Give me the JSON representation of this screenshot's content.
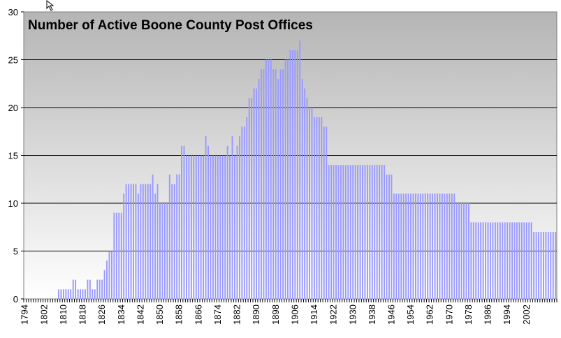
{
  "chart_data": {
    "type": "bar",
    "title": "Number of Active Boone County Post Offices",
    "xlabel": "",
    "ylabel": "",
    "ylim": [
      0,
      30
    ],
    "yticks": [
      0,
      5,
      10,
      15,
      20,
      25,
      30
    ],
    "xtick_labels": [
      "1794",
      "1802",
      "1810",
      "1818",
      "1826",
      "1834",
      "1842",
      "1850",
      "1858",
      "1866",
      "1874",
      "1882",
      "1890",
      "1898",
      "1906",
      "1914",
      "1922",
      "1930",
      "1938",
      "1946",
      "1954",
      "1962",
      "1970",
      "1978",
      "1986",
      "1994",
      "2002"
    ],
    "grid": true,
    "legend": "none",
    "bar_color": "#9999ff",
    "x_start": 1794,
    "x_end": 2005,
    "values": [
      0,
      0,
      0,
      0,
      0,
      0,
      0,
      0,
      0,
      0,
      0,
      0,
      0,
      0,
      1,
      1,
      1,
      1,
      1,
      1,
      2,
      2,
      1,
      1,
      1,
      1,
      2,
      2,
      1,
      1,
      2,
      2,
      2,
      3,
      4,
      5,
      5,
      9,
      9,
      9,
      9,
      11,
      12,
      12,
      12,
      12,
      12,
      11,
      12,
      12,
      12,
      12,
      12,
      13,
      11,
      12,
      10,
      10,
      10,
      10,
      13,
      12,
      12,
      13,
      13,
      16,
      16,
      15,
      15,
      15,
      15,
      15,
      15,
      15,
      15,
      17,
      16,
      15,
      15,
      15,
      15,
      15,
      15,
      15,
      16,
      15,
      17,
      15,
      16,
      17,
      18,
      18,
      19,
      21,
      21,
      22,
      22,
      23,
      24,
      24,
      25,
      25,
      25,
      24,
      24,
      23,
      24,
      24,
      25,
      25,
      26,
      26,
      26,
      26,
      27,
      23,
      22,
      21,
      20,
      20,
      19,
      19,
      19,
      19,
      18,
      18,
      14,
      14,
      14,
      14,
      14,
      14,
      14,
      14,
      14,
      14,
      14,
      14,
      14,
      14,
      14,
      14,
      14,
      14,
      14,
      14,
      14,
      14,
      14,
      14,
      13,
      13,
      13,
      11,
      11,
      11,
      11,
      11,
      11,
      11,
      11,
      11,
      11,
      11,
      11,
      11,
      11,
      11,
      11,
      11,
      11,
      11,
      11,
      11,
      11,
      11,
      11,
      11,
      11,
      10,
      10,
      10,
      10,
      10,
      10,
      8,
      8,
      8,
      8,
      8,
      8,
      8,
      8,
      8,
      8,
      8,
      8,
      8,
      8,
      8,
      8,
      8,
      8,
      8,
      8,
      8,
      8,
      8,
      8,
      8,
      8,
      7,
      7,
      7,
      7,
      7,
      7,
      7,
      7,
      7,
      7
    ]
  }
}
